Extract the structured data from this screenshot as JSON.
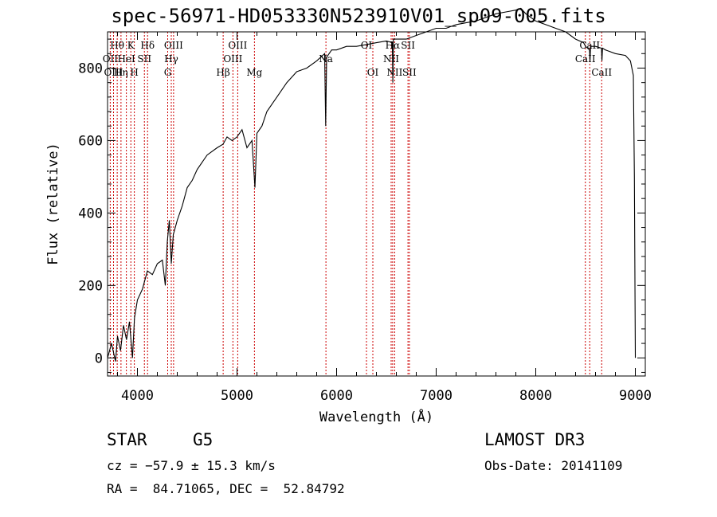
{
  "chart_data": {
    "type": "line",
    "title": "spec-56971-HD053330N523910V01_sp09-005.fits",
    "xlabel": "Wavelength (Å)",
    "ylabel": "Flux (relative)",
    "xlim": [
      3700,
      9100
    ],
    "ylim": [
      -50,
      900
    ],
    "x_ticks": [
      4000,
      5000,
      6000,
      7000,
      8000,
      9000
    ],
    "y_ticks": [
      0,
      200,
      400,
      600,
      800
    ],
    "series": [
      {
        "name": "spectrum",
        "x": [
          3700,
          3740,
          3780,
          3800,
          3830,
          3860,
          3890,
          3920,
          3950,
          3970,
          4000,
          4050,
          4100,
          4150,
          4200,
          4250,
          4280,
          4300,
          4320,
          4340,
          4360,
          4400,
          4450,
          4500,
          4550,
          4600,
          4700,
          4800,
          4860,
          4900,
          4950,
          5000,
          5050,
          5100,
          5150,
          5180,
          5200,
          5250,
          5300,
          5400,
          5500,
          5600,
          5700,
          5800,
          5880,
          5890,
          5900,
          5950,
          6000,
          6100,
          6200,
          6300,
          6400,
          6500,
          6560,
          6565,
          6570,
          6600,
          6700,
          6800,
          6900,
          7000,
          7100,
          7200,
          7300,
          7400,
          7500,
          7600,
          7700,
          7800,
          7850,
          7900,
          8000,
          8100,
          8200,
          8300,
          8400,
          8480,
          8500,
          8540,
          8545,
          8550,
          8600,
          8660,
          8665,
          8670,
          8700,
          8800,
          8900,
          8950,
          8980,
          8990,
          9000
        ],
        "values": [
          0,
          40,
          -10,
          60,
          20,
          90,
          50,
          100,
          0,
          110,
          160,
          190,
          240,
          230,
          260,
          270,
          200,
          320,
          380,
          260,
          340,
          380,
          420,
          470,
          490,
          520,
          560,
          580,
          590,
          610,
          600,
          610,
          630,
          580,
          600,
          470,
          620,
          640,
          680,
          720,
          760,
          790,
          800,
          820,
          840,
          640,
          830,
          850,
          850,
          860,
          860,
          865,
          870,
          875,
          870,
          760,
          880,
          880,
          880,
          890,
          900,
          910,
          910,
          920,
          925,
          930,
          940,
          950,
          955,
          960,
          965,
          950,
          930,
          920,
          910,
          900,
          880,
          870,
          860,
          850,
          820,
          860,
          860,
          855,
          820,
          855,
          850,
          840,
          835,
          820,
          780,
          500,
          0
        ]
      }
    ],
    "line_markers": [
      {
        "label": "Hθ",
        "x": 3797,
        "row": 1
      },
      {
        "label": "OII",
        "x": 3727,
        "row": 2
      },
      {
        "label": "OIII",
        "x": 3760,
        "row": 3
      },
      {
        "label": "K",
        "x": 3934,
        "row": 1
      },
      {
        "label": "HeI",
        "x": 3889,
        "row": 2
      },
      {
        "label": "Hη",
        "x": 3835,
        "row": 3
      },
      {
        "label": "Hδ",
        "x": 4102,
        "row": 1
      },
      {
        "label": "SII",
        "x": 4070,
        "row": 2
      },
      {
        "label": "H",
        "x": 3969,
        "row": 3
      },
      {
        "label": "OIII",
        "x": 4363,
        "row": 1
      },
      {
        "label": "Hγ",
        "x": 4340,
        "row": 2
      },
      {
        "label": "G",
        "x": 4304,
        "row": 3
      },
      {
        "label": "OIII",
        "x": 5007,
        "row": 1
      },
      {
        "label": "OIII",
        "x": 4959,
        "row": 2
      },
      {
        "label": "Hβ",
        "x": 4861,
        "row": 3
      },
      {
        "label": "Mg",
        "x": 5175,
        "row": 3
      },
      {
        "label": "Na",
        "x": 5893,
        "row": 2
      },
      {
        "label": "OI",
        "x": 6300,
        "row": 1
      },
      {
        "label": "OI",
        "x": 6364,
        "row": 3
      },
      {
        "label": "Hα",
        "x": 6563,
        "row": 1
      },
      {
        "label": "SII",
        "x": 6717,
        "row": 1
      },
      {
        "label": "NII",
        "x": 6548,
        "row": 2
      },
      {
        "label": "NII",
        "x": 6583,
        "row": 3
      },
      {
        "label": "SII",
        "x": 6731,
        "row": 3
      },
      {
        "label": "CaII",
        "x": 8542,
        "row": 1
      },
      {
        "label": "CaII",
        "x": 8498,
        "row": 2
      },
      {
        "label": "CaII",
        "x": 8662,
        "row": 3
      }
    ]
  },
  "info": {
    "object_type": "STAR",
    "subclass": "G5",
    "survey": "LAMOST DR3",
    "cz": "cz = −57.9 ± 15.3 km/s",
    "obs_date": "Obs-Date: 20141109",
    "coords": "RA =  84.71065, DEC =  52.84792"
  },
  "colors": {
    "marker": "#cc0000",
    "ink": "#000000"
  }
}
